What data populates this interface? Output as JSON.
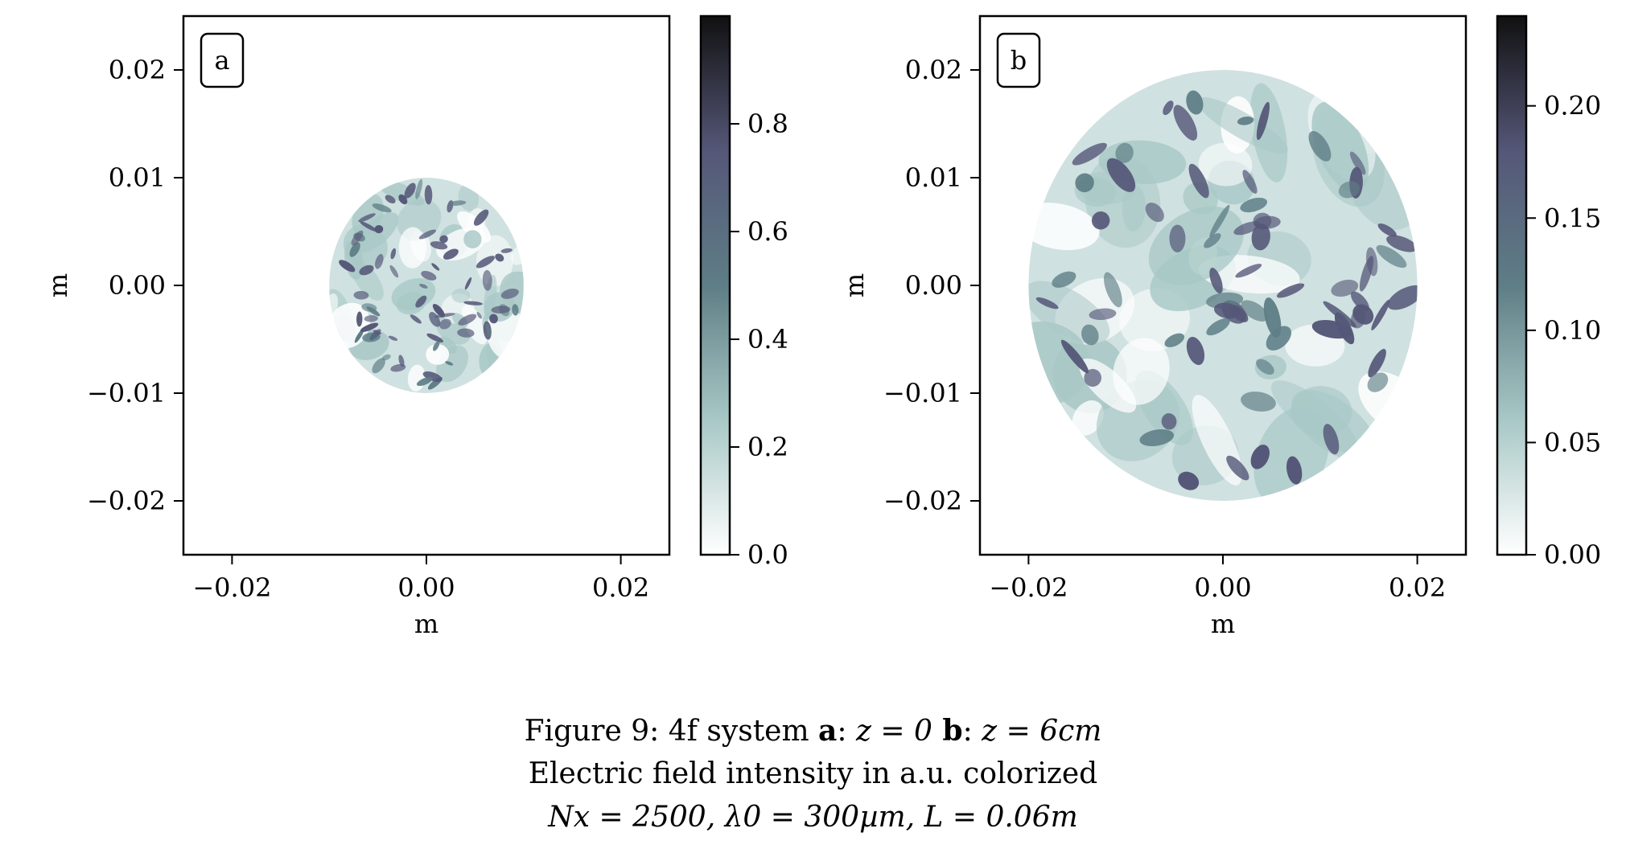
{
  "chart_data": [
    {
      "type": "heatmap",
      "panel_label": "a",
      "xlabel": "m",
      "ylabel": "m",
      "xlim": [
        -0.025,
        0.025
      ],
      "ylim": [
        -0.025,
        0.025
      ],
      "x_ticks": [
        -0.02,
        0.0,
        0.02
      ],
      "x_tick_labels": [
        "−0.02",
        "0.00",
        "0.02"
      ],
      "y_ticks": [
        0.02,
        0.01,
        0.0,
        -0.01,
        -0.02
      ],
      "y_tick_labels": [
        "0.02",
        "0.01",
        "0.00",
        "−0.01",
        "−0.02"
      ],
      "aperture": {
        "center": [
          0.0,
          0.0
        ],
        "radius": 0.01
      },
      "colorbar": {
        "range": [
          0.0,
          1.0
        ],
        "ticks": [
          0.0,
          0.2,
          0.4,
          0.6,
          0.8
        ],
        "tick_labels": [
          "0.0",
          "0.2",
          "0.4",
          "0.6",
          "0.8"
        ]
      }
    },
    {
      "type": "heatmap",
      "panel_label": "b",
      "xlabel": "m",
      "ylabel": "m",
      "xlim": [
        -0.025,
        0.025
      ],
      "ylim": [
        -0.025,
        0.025
      ],
      "x_ticks": [
        -0.02,
        0.0,
        0.02
      ],
      "x_tick_labels": [
        "−0.02",
        "0.00",
        "0.02"
      ],
      "y_ticks": [
        0.02,
        0.01,
        0.0,
        -0.01,
        -0.02
      ],
      "y_tick_labels": [
        "0.02",
        "0.01",
        "0.00",
        "−0.01",
        "−0.02"
      ],
      "aperture": {
        "center": [
          0.0,
          0.0
        ],
        "radius": 0.02
      },
      "colorbar": {
        "range": [
          0.0,
          0.24
        ],
        "ticks": [
          0.0,
          0.05,
          0.1,
          0.15,
          0.2
        ],
        "tick_labels": [
          "0.00",
          "0.05",
          "0.10",
          "0.15",
          "0.20"
        ]
      }
    }
  ],
  "colormap": [
    "#ffffff",
    "#a8c8c6",
    "#5e7e86",
    "#555778",
    "#111111"
  ],
  "caption": {
    "line1": {
      "prefix": "Figure 9:  4f system ",
      "a_label": "a",
      "a_sep": ": ",
      "a_value": "z = 0",
      "b_label": " b",
      "b_sep": ": ",
      "b_value": "z = 6cm"
    },
    "line2": "Electric field intensity in a.u. colorized",
    "line3": "Nx = 2500, λ0 = 300µm, L = 0.06m"
  }
}
